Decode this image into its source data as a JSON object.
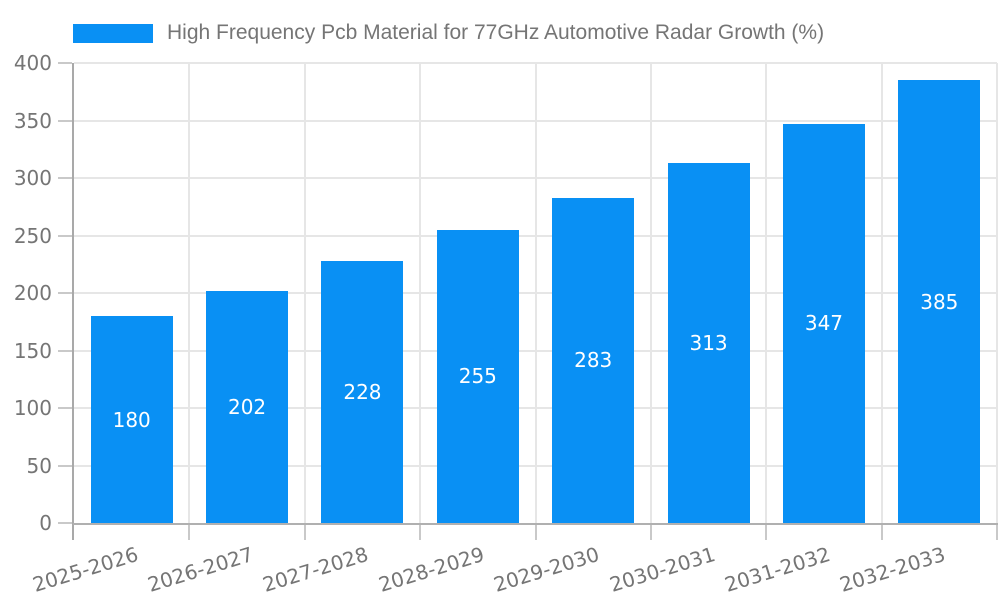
{
  "chart_data": {
    "type": "bar",
    "title": "High Frequency Pcb Material for 77GHz Automotive Radar Growth (%)",
    "legend_label": "High Frequency Pcb Material for 77GHz Automotive Radar Growth (%)",
    "legend_position": "top-left",
    "categories": [
      "2025-2026",
      "2026-2027",
      "2027-2028",
      "2028-2029",
      "2029-2030",
      "2030-2031",
      "2031-2032",
      "2032-2033"
    ],
    "values": [
      180,
      202,
      228,
      255,
      283,
      313,
      347,
      385
    ],
    "yticks": [
      0,
      50,
      100,
      150,
      200,
      250,
      300,
      350,
      400
    ],
    "ylim": [
      0,
      400
    ],
    "xlabel": "",
    "ylabel": "",
    "grid": true,
    "colors": {
      "bar": "#0990f4",
      "value_label": "#ffffff",
      "axis_text": "#757575",
      "title_text": "#757575",
      "gridline": "#e6e6e6",
      "y_axis_line": "#a9a9a9",
      "x_axis_line": "#b0b0b0",
      "tick_mark": "#c9c9c9"
    }
  }
}
